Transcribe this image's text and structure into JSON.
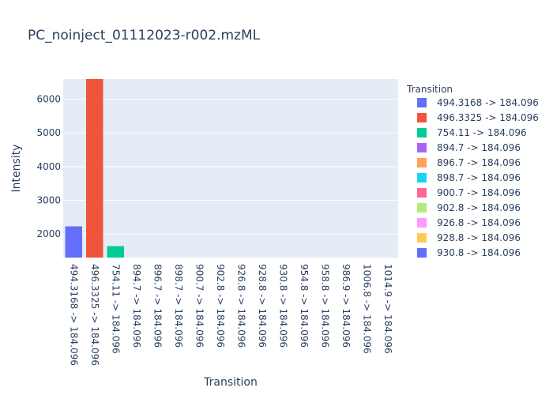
{
  "chart_data": {
    "type": "bar",
    "title": "PC_noinject_01112023-r002.mzML",
    "xlabel": "Transition",
    "ylabel": "Intensity",
    "ylim": [
      1300,
      6600
    ],
    "y_ticks": [
      2000,
      3000,
      4000,
      5000,
      6000
    ],
    "y_tick_labels": [
      "2000",
      "3000",
      "4000",
      "5000",
      "6000"
    ],
    "categories": [
      "494.3168 -> 184.096",
      "496.3325 -> 184.096",
      "754.11 -> 184.096",
      "894.7 -> 184.096",
      "896.7 -> 184.096",
      "898.7 -> 184.096",
      "900.7 -> 184.096",
      "902.8 -> 184.096",
      "926.8 -> 184.096",
      "928.8 -> 184.096",
      "930.8 -> 184.096",
      "954.8 -> 184.096",
      "958.8 -> 184.096",
      "986.9 -> 184.096",
      "1006.8 -> 184.096",
      "1014.9 -> 184.096"
    ],
    "values": [
      2230,
      6650,
      1640,
      1100,
      1100,
      1100,
      1100,
      1100,
      1100,
      1100,
      1100,
      1100,
      1100,
      1100,
      1100,
      1100
    ],
    "colors": [
      "#636efa",
      "#EF553B",
      "#00cc96",
      "#ab63fa",
      "#FFA15A",
      "#19d3f3",
      "#FF6692",
      "#B6E880",
      "#FF97FF",
      "#FECB52",
      "#636efa",
      "#EF553B",
      "#00cc96",
      "#ab63fa",
      "#FFA15A",
      "#19d3f3"
    ],
    "legend": {
      "title": "Transition",
      "position": "right",
      "items": [
        {
          "label": "494.3168 -> 184.096",
          "color": "#636efa"
        },
        {
          "label": "496.3325 -> 184.096",
          "color": "#EF553B"
        },
        {
          "label": "754.11 -> 184.096",
          "color": "#00cc96"
        },
        {
          "label": "894.7 -> 184.096",
          "color": "#ab63fa"
        },
        {
          "label": "896.7 -> 184.096",
          "color": "#FFA15A"
        },
        {
          "label": "898.7 -> 184.096",
          "color": "#19d3f3"
        },
        {
          "label": "900.7 -> 184.096",
          "color": "#FF6692"
        },
        {
          "label": "902.8 -> 184.096",
          "color": "#B6E880"
        },
        {
          "label": "926.8 -> 184.096",
          "color": "#FF97FF"
        },
        {
          "label": "928.8 -> 184.096",
          "color": "#FECB52"
        },
        {
          "label": "930.8 -> 184.096",
          "color": "#636efa"
        }
      ]
    },
    "grid": true,
    "plot_bgcolor": "#E5ECF6",
    "text_color": "#2a3f5f"
  }
}
